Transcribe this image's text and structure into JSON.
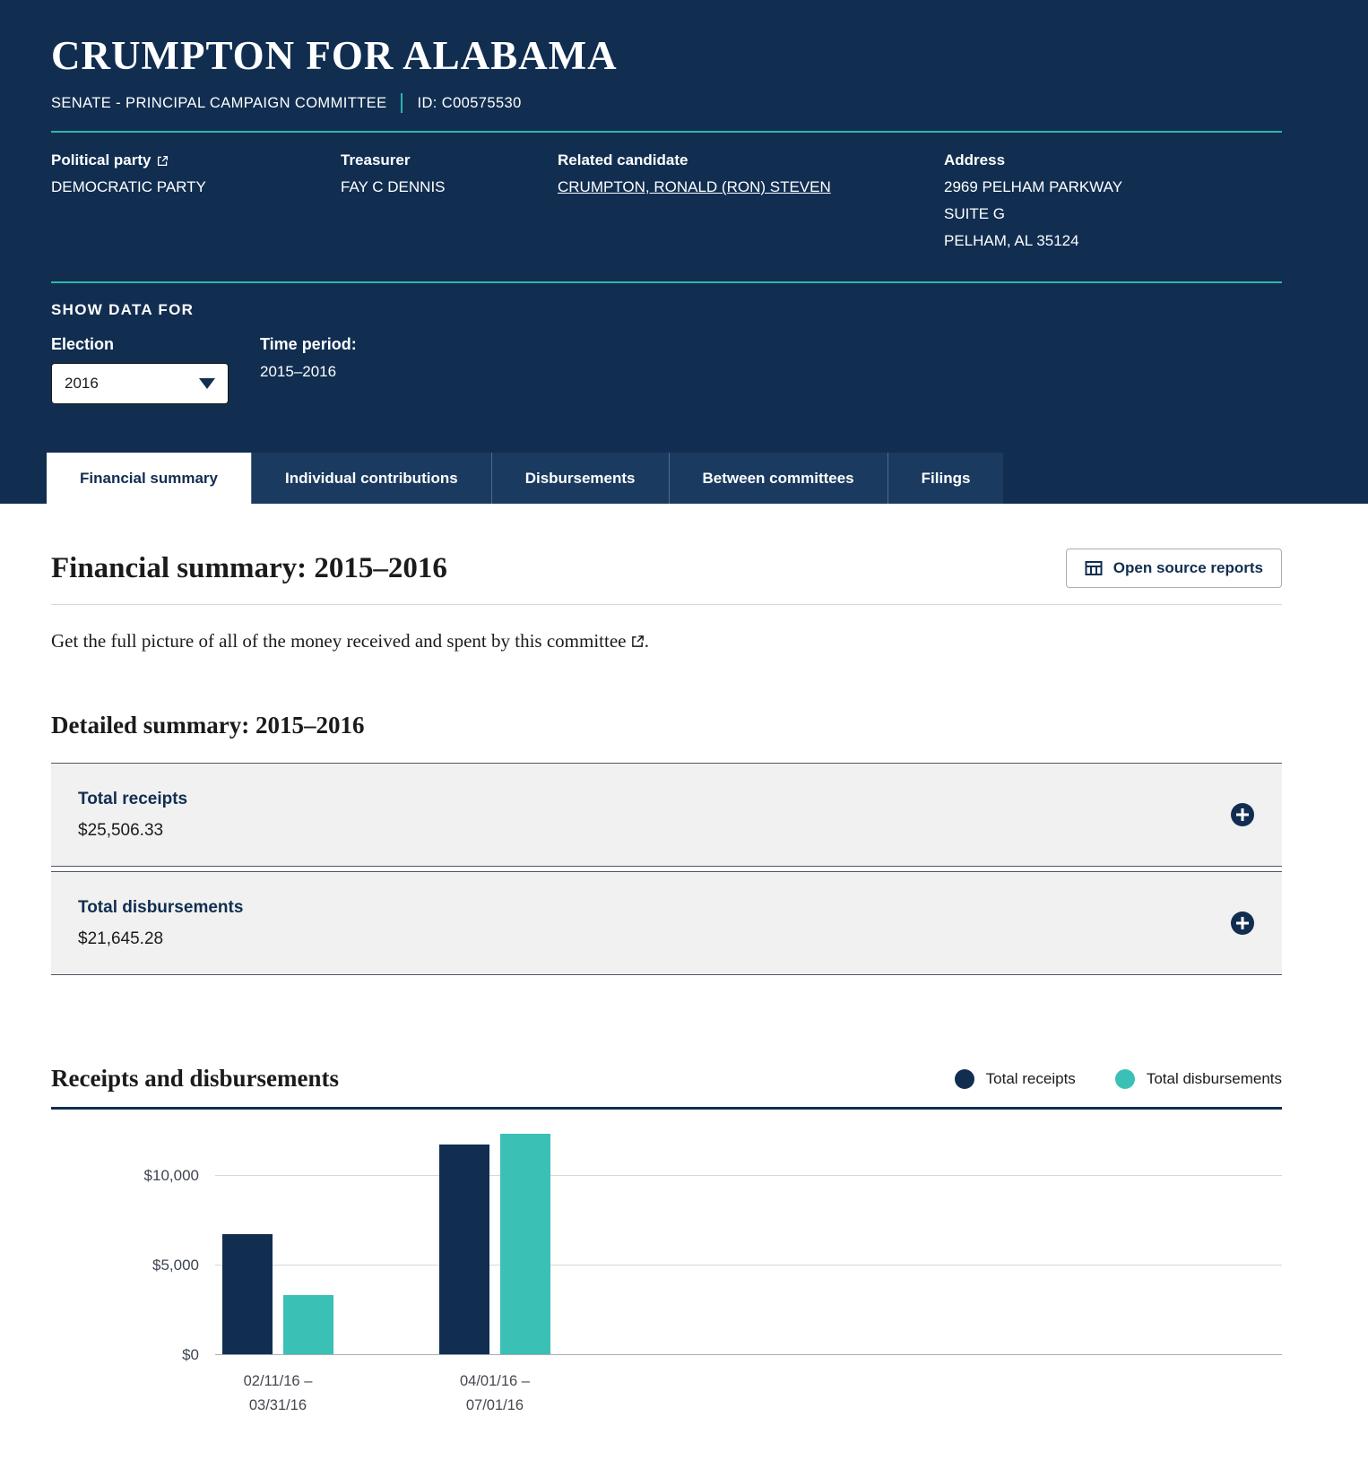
{
  "colors": {
    "navy": "#112e51",
    "teal": "#2bb8ae",
    "bar_navy": "#112e51",
    "bar_teal": "#3bc0b6"
  },
  "header": {
    "title": "CRUMPTON FOR ALABAMA",
    "committee_type": "SENATE - PRINCIPAL CAMPAIGN COMMITTEE",
    "committee_id": "ID: C00575530",
    "political_party": {
      "label": "Political party",
      "value": "DEMOCRATIC PARTY"
    },
    "treasurer": {
      "label": "Treasurer",
      "value": "FAY C DENNIS"
    },
    "related_candidate": {
      "label": "Related candidate",
      "value": "CRUMPTON, RONALD (RON) STEVEN"
    },
    "address": {
      "label": "Address",
      "line1": "2969 PELHAM PARKWAY",
      "line2": "SUITE G",
      "line3": "PELHAM, AL 35124"
    }
  },
  "filters": {
    "heading": "SHOW DATA FOR",
    "election_label": "Election",
    "election_value": "2016",
    "time_period_label": "Time period:",
    "time_period_value": "2015–2016"
  },
  "tabs": [
    {
      "label": "Financial summary",
      "active": true
    },
    {
      "label": "Individual contributions",
      "active": false
    },
    {
      "label": "Disbursements",
      "active": false
    },
    {
      "label": "Between committees",
      "active": false
    },
    {
      "label": "Filings",
      "active": false
    }
  ],
  "main": {
    "heading": "Financial summary: 2015–2016",
    "open_source_reports_label": "Open source reports",
    "intro_text": "Get the full picture of all of the money received and spent by this committee",
    "intro_suffix": ".",
    "detailed_heading": "Detailed summary: 2015–2016",
    "accordions": [
      {
        "label": "Total receipts",
        "value": "$25,506.33"
      },
      {
        "label": "Total disbursements",
        "value": "$21,645.28"
      }
    ],
    "chart_heading": "Receipts and disbursements",
    "legend": [
      {
        "label": "Total receipts",
        "color": "#112e51"
      },
      {
        "label": "Total disbursements",
        "color": "#3bc0b6"
      }
    ]
  },
  "chart_data": {
    "type": "bar",
    "categories": [
      "02/11/16 –\n03/31/16",
      "04/01/16 –\n07/01/16"
    ],
    "series": [
      {
        "name": "Total receipts",
        "color": "#112e51",
        "values": [
          6700,
          11700
        ]
      },
      {
        "name": "Total disbursements",
        "color": "#3bc0b6",
        "values": [
          3300,
          12300
        ]
      }
    ],
    "yticks": [
      0,
      5000,
      10000
    ],
    "ytick_labels": [
      "$0",
      "$5,000",
      "$10,000"
    ],
    "ylim": [
      0,
      12600
    ],
    "grid": true,
    "legend_position": "top-right"
  }
}
